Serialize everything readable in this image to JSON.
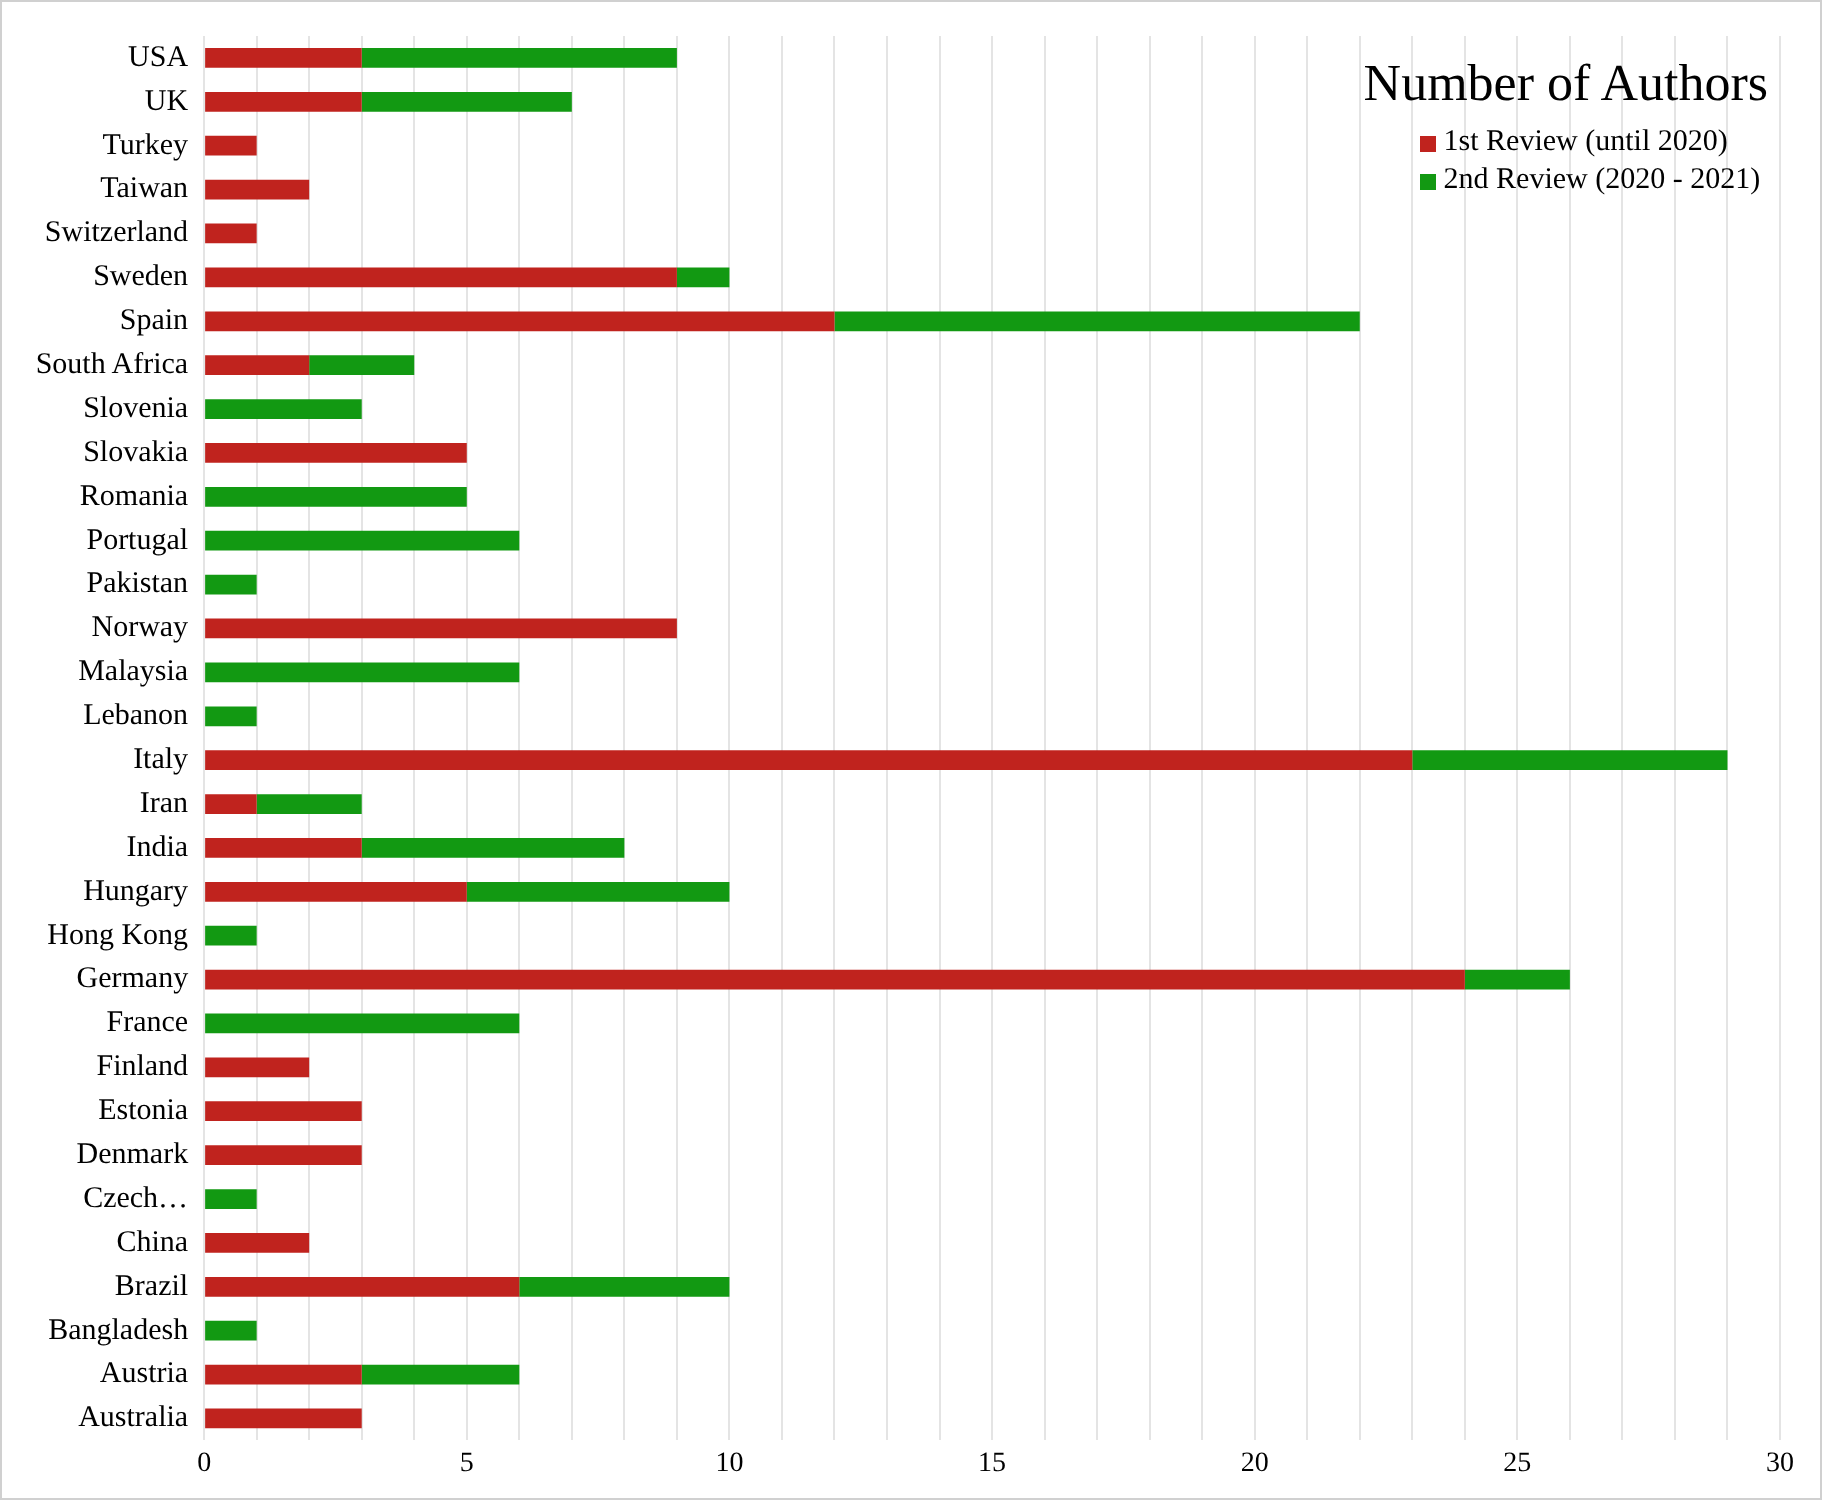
{
  "chart_data": {
    "type": "bar",
    "orientation": "horizontal",
    "stacked": true,
    "legend_title": "Number of Authors",
    "legend": "top right",
    "grid": "x",
    "categories": [
      "USA",
      "UK",
      "Turkey",
      "Taiwan",
      "Switzerland",
      "Sweden",
      "Spain",
      "South Africa",
      "Slovenia",
      "Slovakia",
      "Romania",
      "Portugal",
      "Pakistan",
      "Norway",
      "Malaysia",
      "Lebanon",
      "Italy",
      "Iran",
      "India",
      "Hungary",
      "Hong Kong",
      "Germany",
      "France",
      "Finland",
      "Estonia",
      "Denmark",
      "Czech…",
      "China",
      "Brazil",
      "Bangladesh",
      "Austria",
      "Australia"
    ],
    "series": [
      {
        "name": "1st Review (until 2020)",
        "color": "#c0231e",
        "values": [
          3,
          3,
          1,
          2,
          1,
          9,
          12,
          2,
          null,
          5,
          null,
          null,
          null,
          9,
          null,
          null,
          23,
          1,
          3,
          5,
          null,
          24,
          null,
          2,
          3,
          3,
          null,
          2,
          6,
          null,
          3,
          3
        ]
      },
      {
        "name": "2nd Review (2020 - 2021)",
        "color": "#129912",
        "values": [
          6,
          4,
          null,
          null,
          null,
          1,
          10,
          2,
          3,
          null,
          5,
          6,
          1,
          null,
          6,
          1,
          6,
          2,
          5,
          5,
          1,
          2,
          6,
          null,
          null,
          null,
          1,
          null,
          4,
          1,
          3,
          null
        ]
      }
    ],
    "xlim": [
      0,
      30
    ],
    "xticks": [
      0,
      {
        "value": 1,
        "label": null
      },
      {
        "value": 2,
        "label": null
      },
      {
        "value": 3,
        "label": null
      },
      {
        "value": 4,
        "label": null
      },
      5,
      {
        "value": 6,
        "label": null
      },
      {
        "value": 7,
        "label": null
      },
      {
        "value": 8,
        "label": null
      },
      {
        "value": 9,
        "label": null
      },
      10,
      {
        "value": 11,
        "label": null
      },
      {
        "value": 12,
        "label": null
      },
      {
        "value": 13,
        "label": null
      },
      {
        "value": 14,
        "label": null
      },
      15,
      {
        "value": 16,
        "label": null
      },
      {
        "value": 17,
        "label": null
      },
      {
        "value": 18,
        "label": null
      },
      {
        "value": 19,
        "label": null
      },
      20,
      {
        "value": 21,
        "label": null
      },
      {
        "value": 22,
        "label": null
      },
      {
        "value": 23,
        "label": null
      },
      {
        "value": 24,
        "label": null
      },
      25,
      {
        "value": 26,
        "label": null
      },
      {
        "value": 27,
        "label": null
      },
      {
        "value": 28,
        "label": null
      },
      {
        "value": 29,
        "label": null
      },
      30
    ]
  }
}
